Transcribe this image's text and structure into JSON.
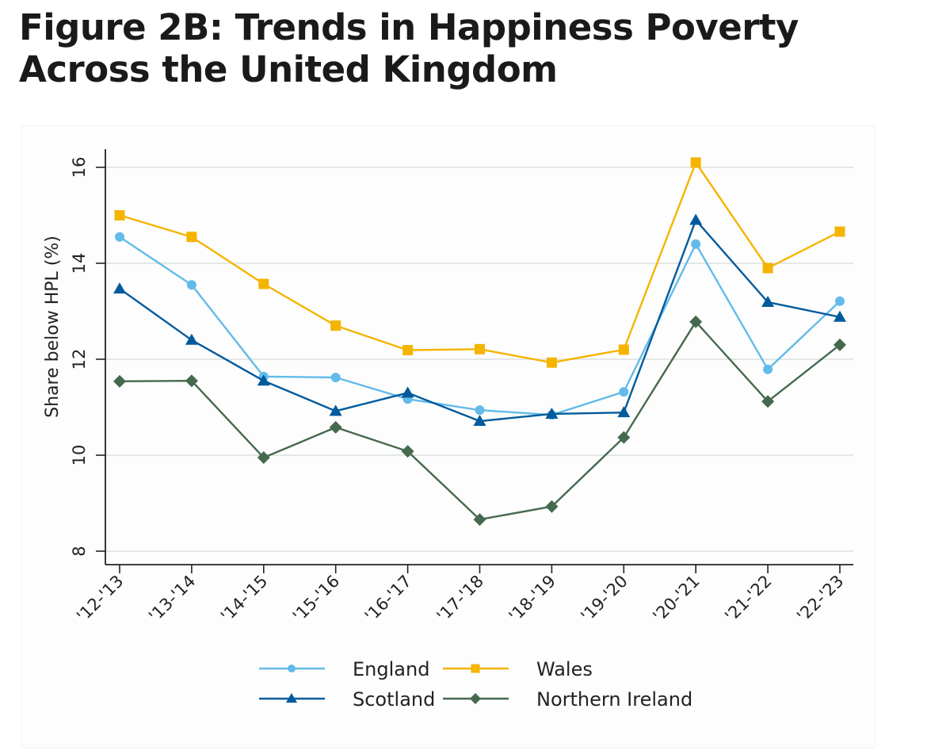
{
  "title": "Figure 2B: Trends in Happiness Poverty Across the United Kingdom",
  "title_lines": [
    "Figure 2B: Trends in Happiness Poverty",
    "Across the United Kingdom"
  ],
  "chart_data": {
    "type": "line",
    "title": "Figure 2B: Trends in Happiness Poverty Across the United Kingdom",
    "xlabel": "",
    "ylabel": "Share below HPL (%)",
    "ylim": [
      8,
      16.4
    ],
    "yticks": [
      8,
      10,
      12,
      14,
      16
    ],
    "grid": true,
    "legend_position": "bottom",
    "categories": [
      "'12-'13",
      "'13-'14",
      "'14-'15",
      "'15-'16",
      "'16-'17",
      "'17-'18",
      "'18-'19",
      "'19-'20",
      "'20-'21",
      "'21-'22",
      "'22-'23"
    ],
    "series": [
      {
        "name": "England",
        "color": "#62bbe8",
        "marker": "circle",
        "values": [
          14.55,
          13.55,
          11.64,
          11.62,
          11.17,
          10.94,
          10.84,
          11.32,
          14.4,
          11.79,
          13.21
        ]
      },
      {
        "name": "Wales",
        "color": "#f5b400",
        "marker": "square",
        "values": [
          15.0,
          14.55,
          13.57,
          12.7,
          12.19,
          12.21,
          11.93,
          12.2,
          16.1,
          13.9,
          14.66
        ]
      },
      {
        "name": "Scotland",
        "color": "#005a9c",
        "marker": "triangle",
        "values": [
          13.47,
          12.4,
          11.55,
          10.92,
          11.3,
          10.71,
          10.86,
          10.89,
          14.9,
          13.19,
          12.88
        ]
      },
      {
        "name": "Northern Ireland",
        "color": "#45694d",
        "marker": "diamond",
        "values": [
          11.54,
          11.55,
          9.95,
          10.58,
          10.08,
          8.66,
          8.93,
          10.37,
          12.78,
          11.12,
          12.3
        ]
      }
    ]
  }
}
